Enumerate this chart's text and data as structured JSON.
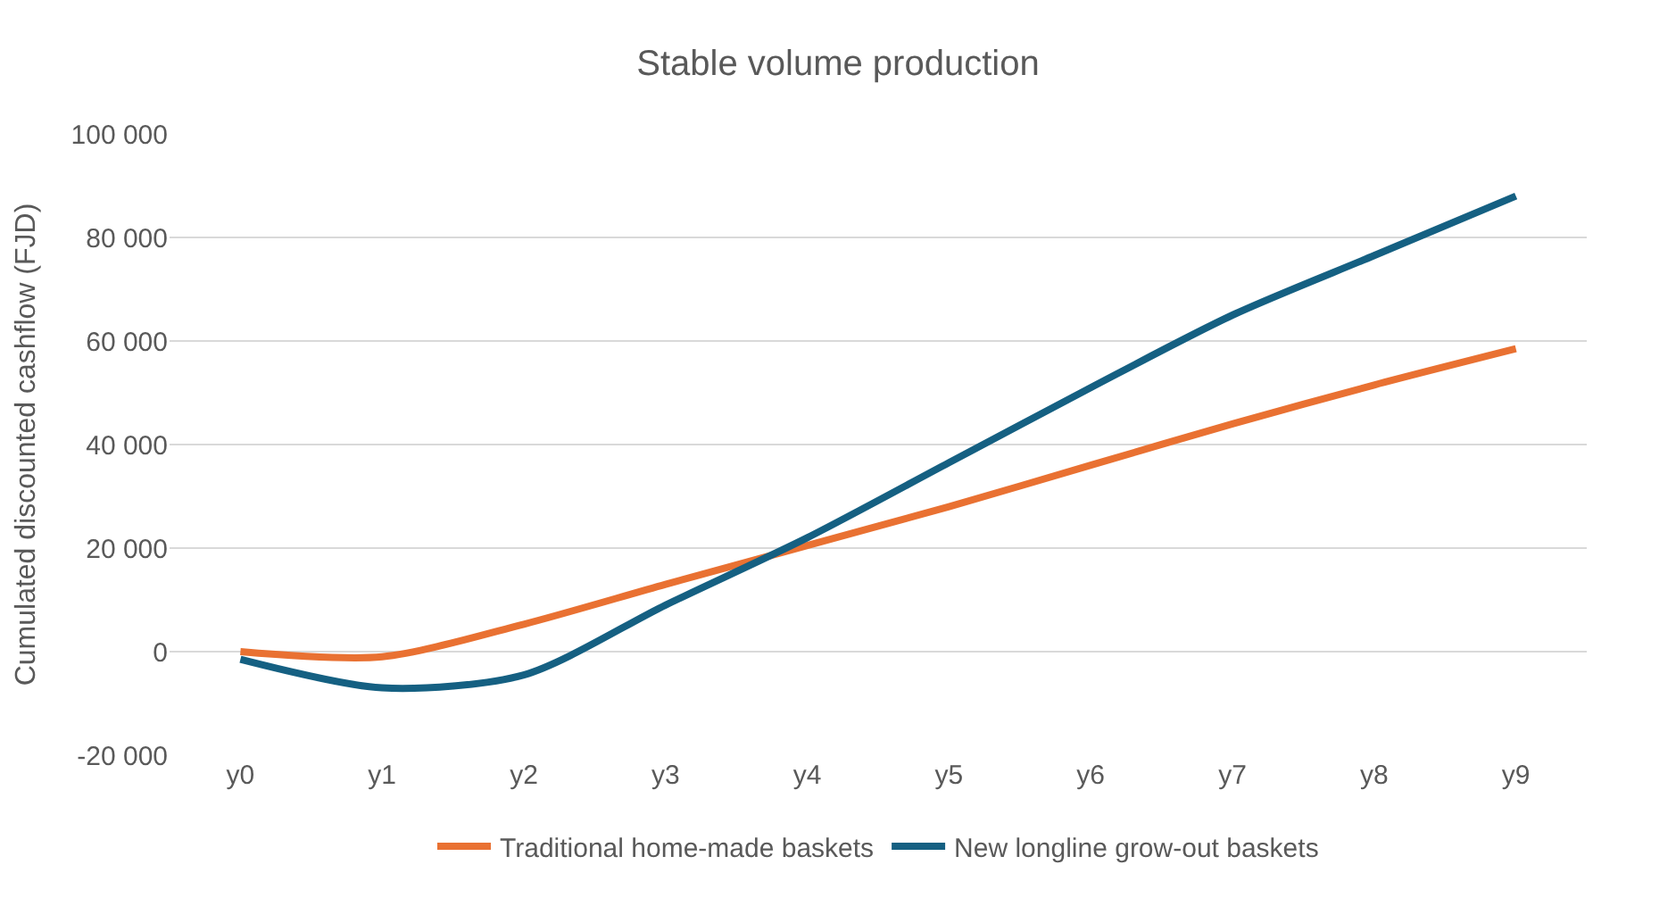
{
  "chart_data": {
    "type": "line",
    "title": "Stable volume production",
    "ylabel": "Cumulated discounted cashflow (FJD)",
    "categories": [
      "y0",
      "y1",
      "y2",
      "y3",
      "y4",
      "y5",
      "y6",
      "y7",
      "y8",
      "y9"
    ],
    "series": [
      {
        "name": "Traditional home-made baskets",
        "color": "#e97132",
        "values": [
          0,
          -1000,
          5300,
          13000,
          20500,
          28000,
          36000,
          44000,
          51500,
          58500
        ]
      },
      {
        "name": "New longline grow-out baskets",
        "color": "#156082",
        "values": [
          -1500,
          -7000,
          -4500,
          9000,
          22000,
          36500,
          51000,
          65000,
          76500,
          88000
        ]
      }
    ],
    "ylim": [
      -20000,
      100000
    ],
    "yticks": [
      {
        "value": -20000,
        "label": "-20 000"
      },
      0,
      {
        "value": 20000,
        "label": "20 000"
      },
      {
        "value": 40000,
        "label": "40 000"
      },
      {
        "value": 60000,
        "label": "60 000"
      },
      {
        "value": 80000,
        "label": "80 000"
      },
      {
        "value": 100000,
        "label": "100 000"
      }
    ],
    "grid": "y",
    "legend": "bottom",
    "marker": "none",
    "line_style": "solid"
  }
}
